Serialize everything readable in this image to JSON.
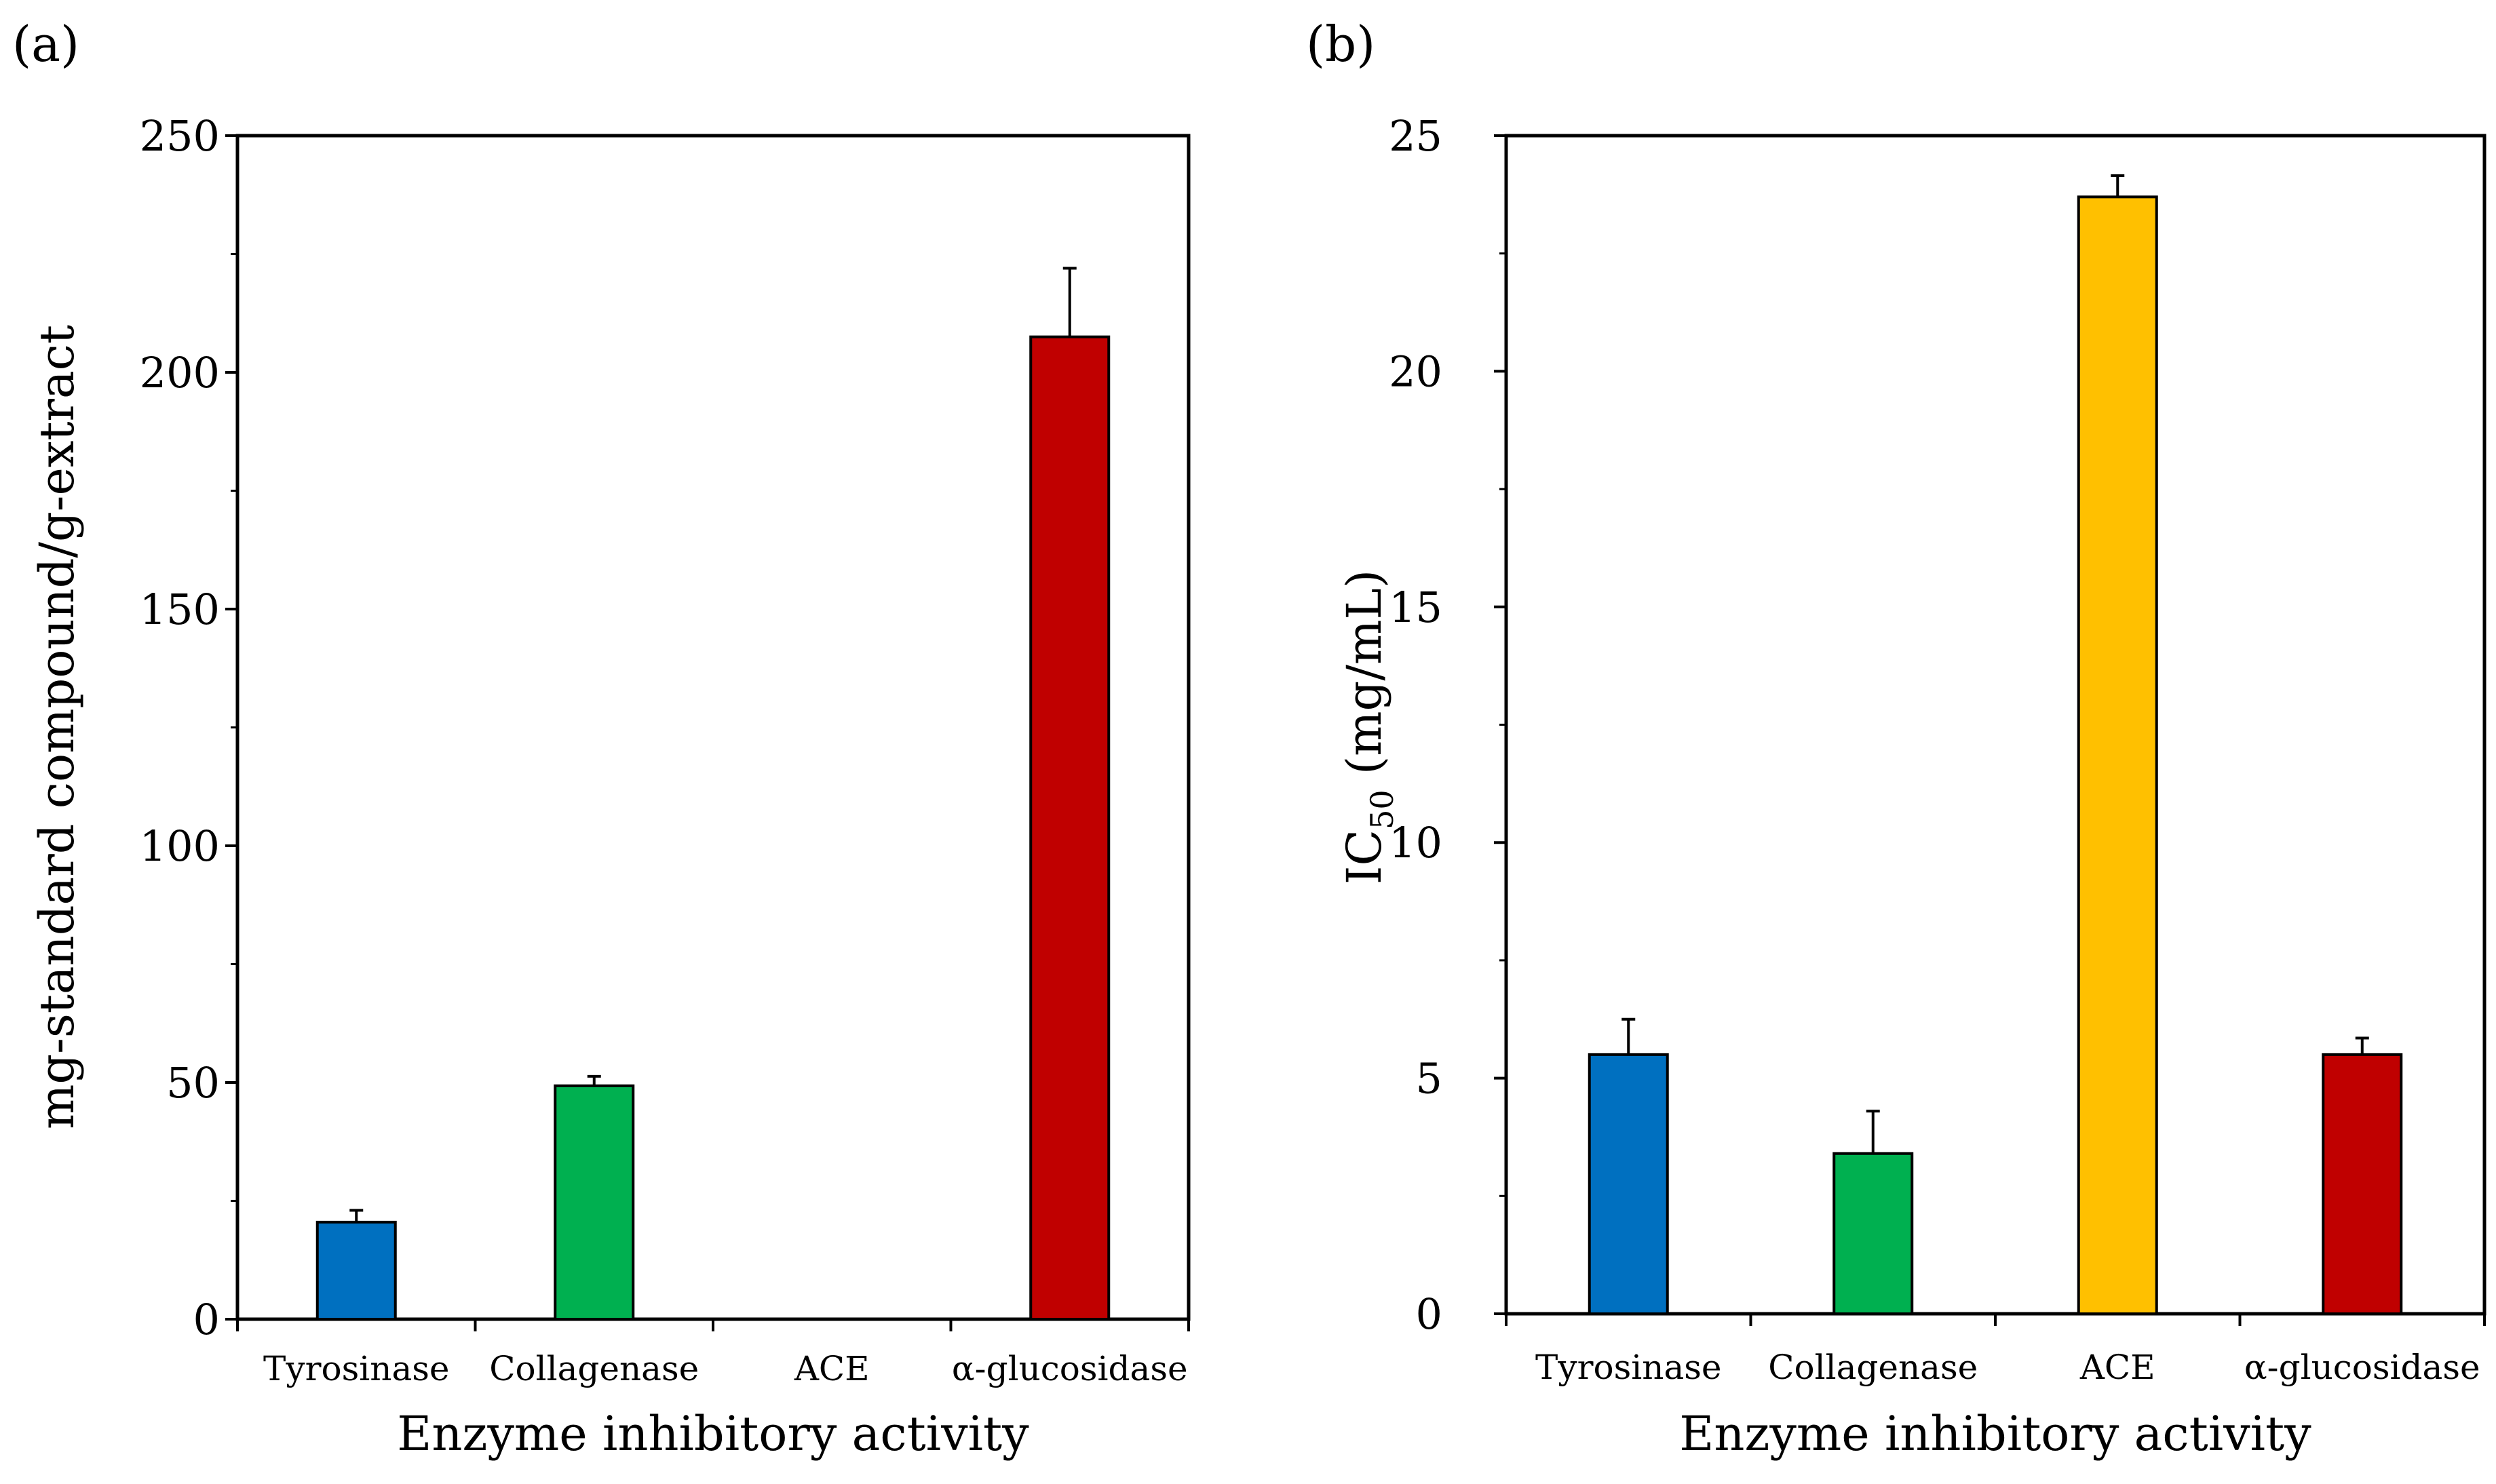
{
  "chart_data": [
    {
      "type": "bar",
      "panel_label": "(a)",
      "title": "",
      "categories": [
        "Tyrosinase",
        "Collagenase",
        "ACE",
        "α-glucosidase"
      ],
      "values": [
        20.5,
        49.3,
        0,
        207.5
      ],
      "errors": [
        2.5,
        2.0,
        0,
        14.5
      ],
      "colors": [
        "#0070C0",
        "#00B050",
        "#FFC000",
        "#C00000"
      ],
      "xlabel": "Enzyme inhibitory activity",
      "ylabel": "mg-standard compound/g-extract",
      "ylim": [
        0,
        250
      ],
      "yticks": [
        0,
        50,
        100,
        150,
        200,
        250
      ],
      "ytick_labels": [
        "0",
        "50",
        "100",
        "150",
        "200",
        "250"
      ],
      "grid": false
    },
    {
      "type": "bar",
      "panel_label": "(b)",
      "title": "",
      "categories": [
        "Tyrosinase",
        "Collagenase",
        "ACE",
        "α-glucosidase"
      ],
      "values": [
        5.5,
        3.4,
        23.7,
        5.5
      ],
      "errors": [
        0.75,
        0.9,
        0.45,
        0.35
      ],
      "colors": [
        "#0070C0",
        "#00B050",
        "#FFC000",
        "#C00000"
      ],
      "xlabel": "Enzyme inhibitory activity",
      "ylabel_main": "IC",
      "ylabel_sub": "50",
      "ylabel_unit": " (mg/mL)",
      "ylim": [
        0,
        25
      ],
      "yticks": [
        0,
        5,
        10,
        15,
        20,
        25
      ],
      "ytick_labels": [
        "0",
        "5",
        "10",
        "15",
        "20",
        "25"
      ],
      "grid": false
    }
  ]
}
